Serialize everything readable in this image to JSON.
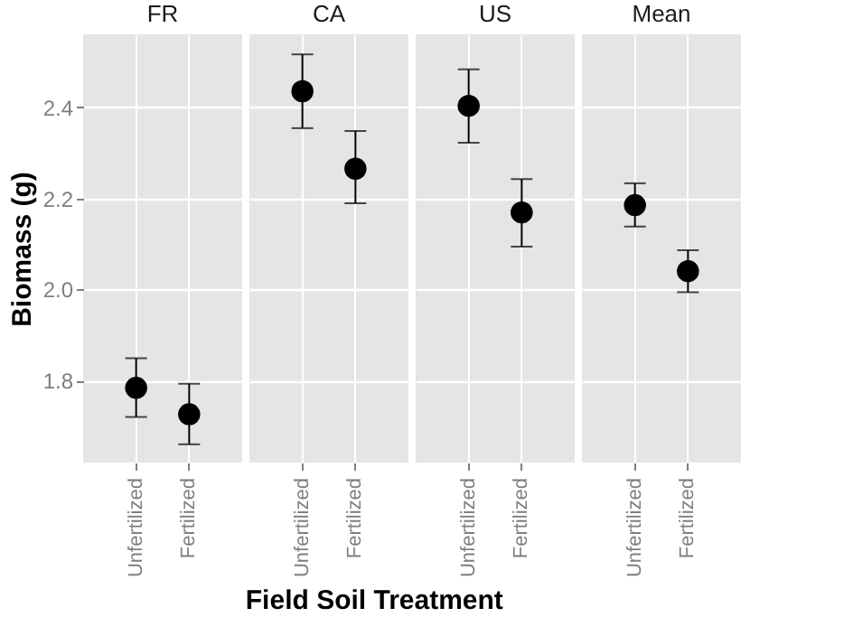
{
  "chart_data": [
    {
      "type": "scatter",
      "title": "FR",
      "ylabel": "Biomass (g)",
      "xlabel": "Field Soil Treatment",
      "categories": [
        "Unfertilized",
        "Fertilized"
      ],
      "values": [
        1.784,
        1.726
      ],
      "errors": [
        [
          1.72,
          1.849
        ],
        [
          1.66,
          1.793
        ]
      ],
      "color": "#000000",
      "marker": "circle",
      "ylim": [
        1.62,
        2.56
      ],
      "yticks": [
        1.8,
        {
          "value": 2,
          "label": "2.0"
        },
        2.2,
        2.4
      ],
      "grid": true
    },
    {
      "type": "scatter",
      "title": "CA",
      "categories": [
        "Unfertilized",
        "Fertilized"
      ],
      "values": [
        2.435,
        2.265
      ],
      "errors": [
        [
          2.354,
          2.516
        ],
        [
          2.189,
          2.348
        ]
      ],
      "color": "#000000",
      "marker": "circle",
      "ylim": [
        1.62,
        2.56
      ],
      "yticks": [
        1.8,
        2,
        2.2,
        2.4
      ],
      "grid": true,
      "tick_labels": "x"
    },
    {
      "type": "scatter",
      "title": "US",
      "categories": [
        "Unfertilized",
        "Fertilized"
      ],
      "values": [
        2.403,
        2.169
      ],
      "errors": [
        [
          2.322,
          2.483
        ],
        [
          2.094,
          2.242
        ]
      ],
      "color": "#000000",
      "marker": "circle",
      "ylim": [
        1.62,
        2.56
      ],
      "yticks": [
        1.8,
        2,
        2.2,
        2.4
      ],
      "grid": true,
      "tick_labels": "x"
    },
    {
      "type": "scatter",
      "title": "Mean",
      "categories": [
        "Unfertilized",
        "Fertilized"
      ],
      "values": [
        2.185,
        2.04
      ],
      "errors": [
        [
          2.138,
          2.233
        ],
        [
          1.994,
          2.086
        ]
      ],
      "color": "#000000",
      "marker": "circle",
      "ylim": [
        1.62,
        2.56
      ],
      "yticks": [
        1.8,
        2,
        2.2,
        2.4
      ],
      "grid": true,
      "tick_labels": "x"
    }
  ]
}
